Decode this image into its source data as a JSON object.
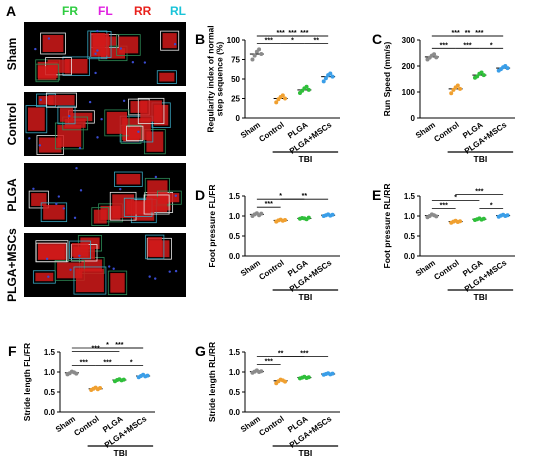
{
  "panels": {
    "A": "A",
    "B": "B",
    "C": "C",
    "D": "D",
    "E": "E",
    "F": "F",
    "G": "G"
  },
  "paw_legend": [
    {
      "label": "FR",
      "color": "#2ecc40"
    },
    {
      "label": "FL",
      "color": "#e020e0"
    },
    {
      "label": "RR",
      "color": "#e8211c"
    },
    {
      "label": "RL",
      "color": "#19c3d8"
    }
  ],
  "image_rows": [
    "Sham",
    "Control",
    "PLGA",
    "PLGA+MSCs"
  ],
  "group_colors": {
    "Sham": "#8b8b8b",
    "Control": "#f0a030",
    "PLGA": "#2fbf3a",
    "PLGA+MSCs": "#3a9ee8"
  },
  "chart_data": [
    {
      "id": "B",
      "type": "scatter",
      "ylabel": "Regularity index of normal step sequence (%)",
      "categories": [
        "Sham",
        "Control",
        "PLGA",
        "PLGA+MSCs"
      ],
      "group_label": "TBI",
      "ylim": [
        0,
        100
      ],
      "yticks": [
        0,
        25,
        50,
        75,
        100
      ],
      "means": [
        82,
        25,
        36,
        53
      ],
      "points": [
        [
          75,
          80,
          85,
          88,
          82
        ],
        [
          20,
          24,
          27,
          29,
          25
        ],
        [
          32,
          35,
          38,
          40,
          36
        ],
        [
          47,
          51,
          55,
          57,
          53
        ]
      ],
      "brackets": [
        {
          "from": 0,
          "to": 1,
          "label": "***"
        },
        {
          "from": 0,
          "to": 2,
          "label": "***"
        },
        {
          "from": 0,
          "to": 3,
          "label": "***"
        },
        {
          "from": 1,
          "to": 3,
          "label": "***"
        },
        {
          "from": 1,
          "to": 2,
          "label": "*"
        },
        {
          "from": 2,
          "to": 3,
          "label": "**"
        }
      ]
    },
    {
      "id": "C",
      "type": "scatter",
      "ylabel": "Run Speed (mm/s)",
      "categories": [
        "Sham",
        "Control",
        "PLGA",
        "PLGA+MSCs"
      ],
      "group_label": "TBI",
      "ylim": [
        0,
        300
      ],
      "yticks": [
        0,
        100,
        200,
        300
      ],
      "means": [
        235,
        112,
        165,
        192
      ],
      "points": [
        [
          225,
          232,
          240,
          245,
          233
        ],
        [
          95,
          108,
          118,
          125,
          112
        ],
        [
          155,
          160,
          170,
          175,
          165
        ],
        [
          182,
          188,
          195,
          200,
          192
        ]
      ],
      "brackets": [
        {
          "from": 0,
          "to": 1,
          "label": "***"
        },
        {
          "from": 0,
          "to": 2,
          "label": "***"
        },
        {
          "from": 0,
          "to": 3,
          "label": "**"
        },
        {
          "from": 1,
          "to": 3,
          "label": "***"
        },
        {
          "from": 1,
          "to": 2,
          "label": "***"
        },
        {
          "from": 2,
          "to": 3,
          "label": "*"
        }
      ]
    },
    {
      "id": "D",
      "type": "scatter",
      "ylabel": "Foot pressure FL/FR",
      "categories": [
        "Sham",
        "Control",
        "PLGA",
        "PLGA+MSCs"
      ],
      "group_label": "TBI",
      "ylim": [
        0,
        1.5
      ],
      "yticks": [
        0.0,
        0.5,
        1.0,
        1.5
      ],
      "means": [
        1.04,
        0.89,
        0.94,
        1.02
      ],
      "points": [
        [
          1.0,
          1.04,
          1.07,
          1.02,
          1.06
        ],
        [
          0.86,
          0.89,
          0.91,
          0.88,
          0.9
        ],
        [
          0.93,
          0.95,
          0.94,
          0.92,
          0.96
        ],
        [
          1.0,
          1.02,
          1.04,
          1.01,
          1.03
        ]
      ],
      "brackets": [
        {
          "from": 0,
          "to": 1,
          "label": "***"
        },
        {
          "from": 0,
          "to": 2,
          "label": "*"
        },
        {
          "from": 1,
          "to": 3,
          "label": "**"
        }
      ]
    },
    {
      "id": "E",
      "type": "scatter",
      "ylabel": "Foot pressure RL/RR",
      "categories": [
        "Sham",
        "Control",
        "PLGA",
        "PLGA+MSCs"
      ],
      "group_label": "TBI",
      "ylim": [
        0,
        1.5
      ],
      "yticks": [
        0.0,
        0.5,
        1.0,
        1.5
      ],
      "means": [
        1.01,
        0.86,
        0.92,
        1.01
      ],
      "points": [
        [
          0.97,
          1.0,
          1.04,
          1.02,
          0.99
        ],
        [
          0.83,
          0.86,
          0.88,
          0.85,
          0.87
        ],
        [
          0.9,
          0.92,
          0.94,
          0.91,
          0.93
        ],
        [
          0.98,
          1.01,
          1.03,
          1.0,
          1.02
        ]
      ],
      "brackets": [
        {
          "from": 0,
          "to": 1,
          "label": "***"
        },
        {
          "from": 0,
          "to": 2,
          "label": "*"
        },
        {
          "from": 1,
          "to": 3,
          "label": "***"
        },
        {
          "from": 2,
          "to": 3,
          "label": "*"
        }
      ]
    },
    {
      "id": "F",
      "type": "scatter",
      "ylabel": "Stride length FL/FR",
      "categories": [
        "Sham",
        "Control",
        "PLGA",
        "PLGA+MSCs"
      ],
      "group_label": "TBI",
      "ylim": [
        0,
        1.5
      ],
      "yticks": [
        0.0,
        0.5,
        1.0,
        1.5
      ],
      "means": [
        0.98,
        0.58,
        0.8,
        0.9
      ],
      "points": [
        [
          0.94,
          0.97,
          1.01,
          0.99,
          0.96
        ],
        [
          0.55,
          0.58,
          0.61,
          0.57,
          0.6
        ],
        [
          0.77,
          0.8,
          0.82,
          0.79,
          0.81
        ],
        [
          0.87,
          0.9,
          0.93,
          0.89,
          0.91
        ]
      ],
      "brackets": [
        {
          "from": 0,
          "to": 1,
          "label": "***"
        },
        {
          "from": 0,
          "to": 2,
          "label": "***"
        },
        {
          "from": 0,
          "to": 3,
          "label": "*"
        },
        {
          "from": 1,
          "to": 3,
          "label": "***"
        },
        {
          "from": 1,
          "to": 2,
          "label": "***"
        },
        {
          "from": 2,
          "to": 3,
          "label": "*"
        }
      ]
    },
    {
      "id": "G",
      "type": "scatter",
      "ylabel": "Stride length RL/RR",
      "categories": [
        "Sham",
        "Control",
        "PLGA",
        "PLGA+MSCs"
      ],
      "group_label": "TBI",
      "ylim": [
        0,
        1.5
      ],
      "yticks": [
        0.0,
        0.5,
        1.0,
        1.5
      ],
      "means": [
        1.01,
        0.78,
        0.86,
        0.95
      ],
      "points": [
        [
          0.98,
          1.01,
          1.04,
          1.0,
          1.02
        ],
        [
          0.72,
          0.77,
          0.81,
          0.79,
          0.76
        ],
        [
          0.84,
          0.86,
          0.88,
          0.85,
          0.87
        ],
        [
          0.93,
          0.95,
          0.97,
          0.94,
          0.96
        ]
      ],
      "brackets": [
        {
          "from": 0,
          "to": 1,
          "label": "***"
        },
        {
          "from": 0,
          "to": 2,
          "label": "**"
        },
        {
          "from": 1,
          "to": 3,
          "label": "***"
        }
      ]
    }
  ]
}
